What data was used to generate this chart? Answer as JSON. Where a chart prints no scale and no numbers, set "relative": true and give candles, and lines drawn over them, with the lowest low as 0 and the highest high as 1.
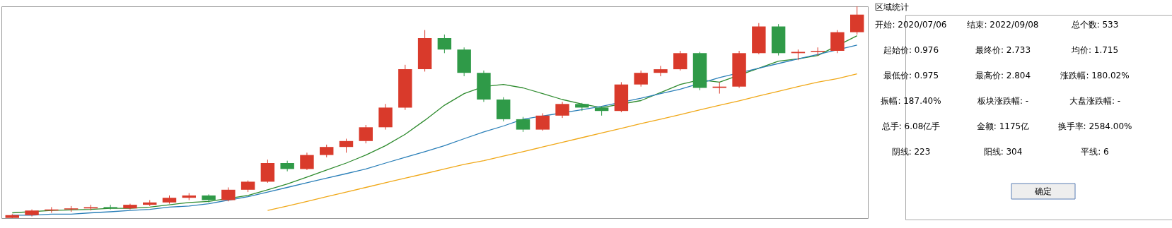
{
  "chart_data": [
    {
      "type": "candlestick",
      "relative": true,
      "grid": false,
      "categories": [
        null,
        null,
        null,
        null,
        null,
        null,
        null,
        null,
        null,
        null,
        null,
        null,
        null,
        null,
        null,
        null,
        null,
        null,
        null,
        null,
        null,
        null,
        null,
        null,
        null,
        null,
        null,
        null,
        null,
        null,
        null,
        null,
        null,
        null,
        null,
        null,
        null,
        null,
        null,
        null,
        null,
        null,
        null,
        null
      ],
      "ohlc": [
        [
          0.001,
          0.019,
          0,
          0.014
        ],
        [
          0.014,
          0.041,
          0.008,
          0.036
        ],
        [
          0.036,
          0.052,
          0.025,
          0.041
        ],
        [
          0.041,
          0.057,
          0.03,
          0.046
        ],
        [
          0.046,
          0.063,
          0.036,
          0.052
        ],
        [
          0.052,
          0.063,
          0.041,
          0.046
        ],
        [
          0.046,
          0.068,
          0.041,
          0.063
        ],
        [
          0.063,
          0.085,
          0.057,
          0.074
        ],
        [
          0.074,
          0.107,
          0.068,
          0.096
        ],
        [
          0.096,
          0.118,
          0.085,
          0.107
        ],
        [
          0.107,
          0.112,
          0.074,
          0.085
        ],
        [
          0.085,
          0.145,
          0.079,
          0.134
        ],
        [
          0.134,
          0.178,
          0.123,
          0.172
        ],
        [
          0.172,
          0.276,
          0.167,
          0.26
        ],
        [
          0.26,
          0.271,
          0.221,
          0.232
        ],
        [
          0.232,
          0.309,
          0.227,
          0.298
        ],
        [
          0.298,
          0.347,
          0.287,
          0.336
        ],
        [
          0.336,
          0.375,
          0.309,
          0.364
        ],
        [
          0.364,
          0.44,
          0.353,
          0.429
        ],
        [
          0.429,
          0.539,
          0.418,
          0.522
        ],
        [
          0.522,
          0.724,
          0.511,
          0.703
        ],
        [
          0.703,
          0.888,
          0.692,
          0.85
        ],
        [
          0.85,
          0.867,
          0.779,
          0.796
        ],
        [
          0.796,
          0.806,
          0.67,
          0.686
        ],
        [
          0.686,
          0.697,
          0.549,
          0.56
        ],
        [
          0.56,
          0.571,
          0.457,
          0.467
        ],
        [
          0.467,
          0.478,
          0.407,
          0.418
        ],
        [
          0.418,
          0.495,
          0.413,
          0.484
        ],
        [
          0.484,
          0.549,
          0.473,
          0.539
        ],
        [
          0.539,
          0.544,
          0.506,
          0.522
        ],
        [
          0.522,
          0.528,
          0.484,
          0.506
        ],
        [
          0.506,
          0.642,
          0.5,
          0.631
        ],
        [
          0.631,
          0.697,
          0.621,
          0.686
        ],
        [
          0.686,
          0.719,
          0.67,
          0.703
        ],
        [
          0.703,
          0.79,
          0.697,
          0.779
        ],
        [
          0.779,
          0.785,
          0.604,
          0.615
        ],
        [
          0.615,
          0.642,
          0.588,
          0.621
        ],
        [
          0.621,
          0.79,
          0.615,
          0.779
        ],
        [
          0.779,
          0.921,
          0.774,
          0.905
        ],
        [
          0.905,
          0.916,
          0.768,
          0.779
        ],
        [
          0.779,
          0.796,
          0.746,
          0.785
        ],
        [
          0.785,
          0.806,
          0.768,
          0.79
        ],
        [
          0.79,
          0.888,
          0.779,
          0.878
        ],
        [
          0.878,
          1,
          0.867,
          0.961
        ]
      ],
      "series": [
        {
          "type": "line",
          "color": "#2e8b2e",
          "values": [
            0.025,
            null,
            0.036,
            null,
            0.041,
            0.046,
            0.046,
            0.052,
            0.063,
            0.074,
            0.079,
            null,
            0.107,
            0.134,
            0.161,
            0.194,
            0.227,
            0.26,
            0.298,
            0.342,
            0.396,
            0.462,
            0.533,
            0.588,
            0.621,
            0.631,
            0.615,
            0.588,
            0.56,
            0.539,
            0.522,
            null,
            0.555,
            0.593,
            0.631,
            0.653,
            0.642,
            null,
            0.708,
            0.741,
            0.752,
            0.768,
            null,
            0.861
          ]
        },
        {
          "type": "line",
          "color": "#2a7fb8",
          "values": [
            0.014,
            0.014,
            0.019,
            0.019,
            0.025,
            0.03,
            0.036,
            0.041,
            0.052,
            0.057,
            0.068,
            0.085,
            0.101,
            0.123,
            0.145,
            0.167,
            0.189,
            0.21,
            0.232,
            0.26,
            0.287,
            0.314,
            0.342,
            0.375,
            0.407,
            0.435,
            0.467,
            null,
            null,
            0.512,
            0.528,
            null,
            0.566,
            0.588,
            0.609,
            null,
            0.664,
            null,
            0.708,
            0.73,
            0.752,
            0.773,
            null,
            0.817
          ]
        },
        {
          "type": "line",
          "color": "#f0a818",
          "values": [
            null,
            null,
            null,
            null,
            null,
            null,
            null,
            null,
            null,
            null,
            null,
            null,
            null,
            0.036,
            0.057,
            0.079,
            0.101,
            0.123,
            0.145,
            0.167,
            0.189,
            0.21,
            0.232,
            0.254,
            0.271,
            0.293,
            0.314,
            0.336,
            0.358,
            0.38,
            0.402,
            0.424,
            0.446,
            0.467,
            0.489,
            0.511,
            0.533,
            0.554,
            0.577,
            0.599,
            0.621,
            0.642,
            0.659,
            0.681
          ]
        }
      ]
    },
    {
      "type": "other",
      "title": "区域统计",
      "annotations": [
        "开始: 2020/07/06",
        "结束: 2022/09/08",
        "总个数: 533",
        "起始价: 0.976",
        "最终价: 2.733",
        "均价: 1.715",
        "最低价: 0.975",
        "最高价: 2.804",
        "涨跌幅: 180.02%",
        "振幅: 187.40%",
        "板块涨跌幅: -",
        "大盘涨跌幅: -",
        "总手: 6.08亿手",
        "金额: 1175亿",
        "换手率: 2584.00%",
        "阴线: 223",
        "阳线: 304",
        "平线: 6",
        "确定"
      ]
    }
  ]
}
